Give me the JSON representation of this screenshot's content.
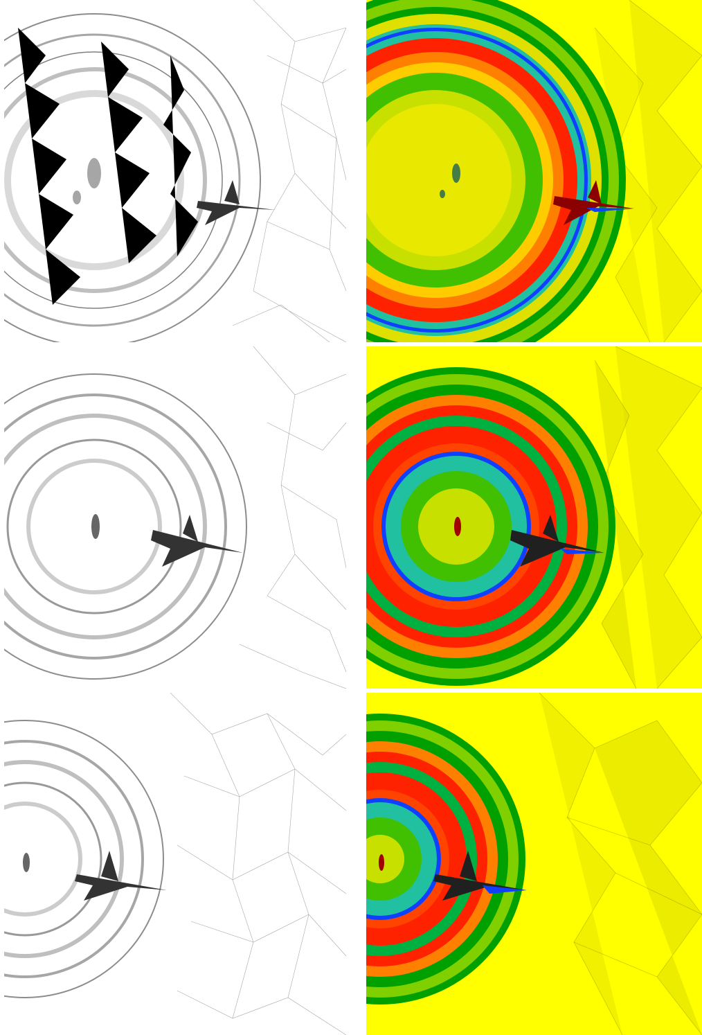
{
  "figure": {
    "rows": [
      {
        "mesh": {
          "ring_scale": 1.0,
          "wake_spread": 1.0
        },
        "field": {
          "ring_scale": 1.0,
          "colors": [
            "#00a000",
            "#ff2200",
            "#1040ff",
            "#20c0a0"
          ]
        }
      },
      {
        "mesh": {
          "ring_scale": 1.0,
          "wake_spread": 1.0
        },
        "field": {
          "ring_scale": 1.0,
          "colors": [
            "#00a000",
            "#ff2200",
            "#1040ff",
            "#20c0a0"
          ]
        }
      },
      {
        "mesh": {
          "ring_scale": 1.0,
          "wake_spread": 1.0
        },
        "field": {
          "ring_scale": 1.0,
          "colors": [
            "#00a000",
            "#ff2200",
            "#1040ff",
            "#20c0a0"
          ]
        }
      }
    ],
    "background_far_field": "#ffff00",
    "mesh_line_color": "#000000"
  }
}
